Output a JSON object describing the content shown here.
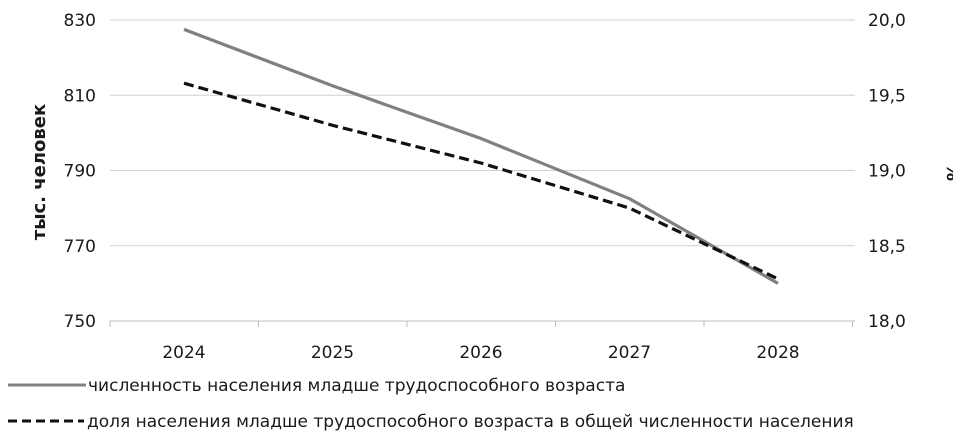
{
  "chart_data": {
    "type": "line",
    "x": [
      "2024",
      "2025",
      "2026",
      "2027",
      "2028"
    ],
    "ylabel": "тыс. человек",
    "ylabel_right": "%",
    "ylim": [
      750,
      830
    ],
    "yticks": [
      "750",
      "770",
      "790",
      "810",
      "830"
    ],
    "ylim_right": [
      18.0,
      20.0
    ],
    "yticks_right": [
      "18,0",
      "18,5",
      "19,0",
      "19,5",
      "20,0"
    ],
    "grid": "horizontal",
    "legend_position": "bottom",
    "series": [
      {
        "name": "численность населения младше трудоспособного возраста",
        "axis": "left",
        "style": "solid",
        "color": "#808080",
        "values": [
          827.5,
          812.5,
          798.5,
          782.5,
          760.0
        ]
      },
      {
        "name": "доля  населения младше трудоспособного возраста в общей численности населения",
        "axis": "right",
        "style": "dashed",
        "color": "#111111",
        "values": [
          19.58,
          19.3,
          19.05,
          18.75,
          18.28
        ]
      }
    ]
  }
}
